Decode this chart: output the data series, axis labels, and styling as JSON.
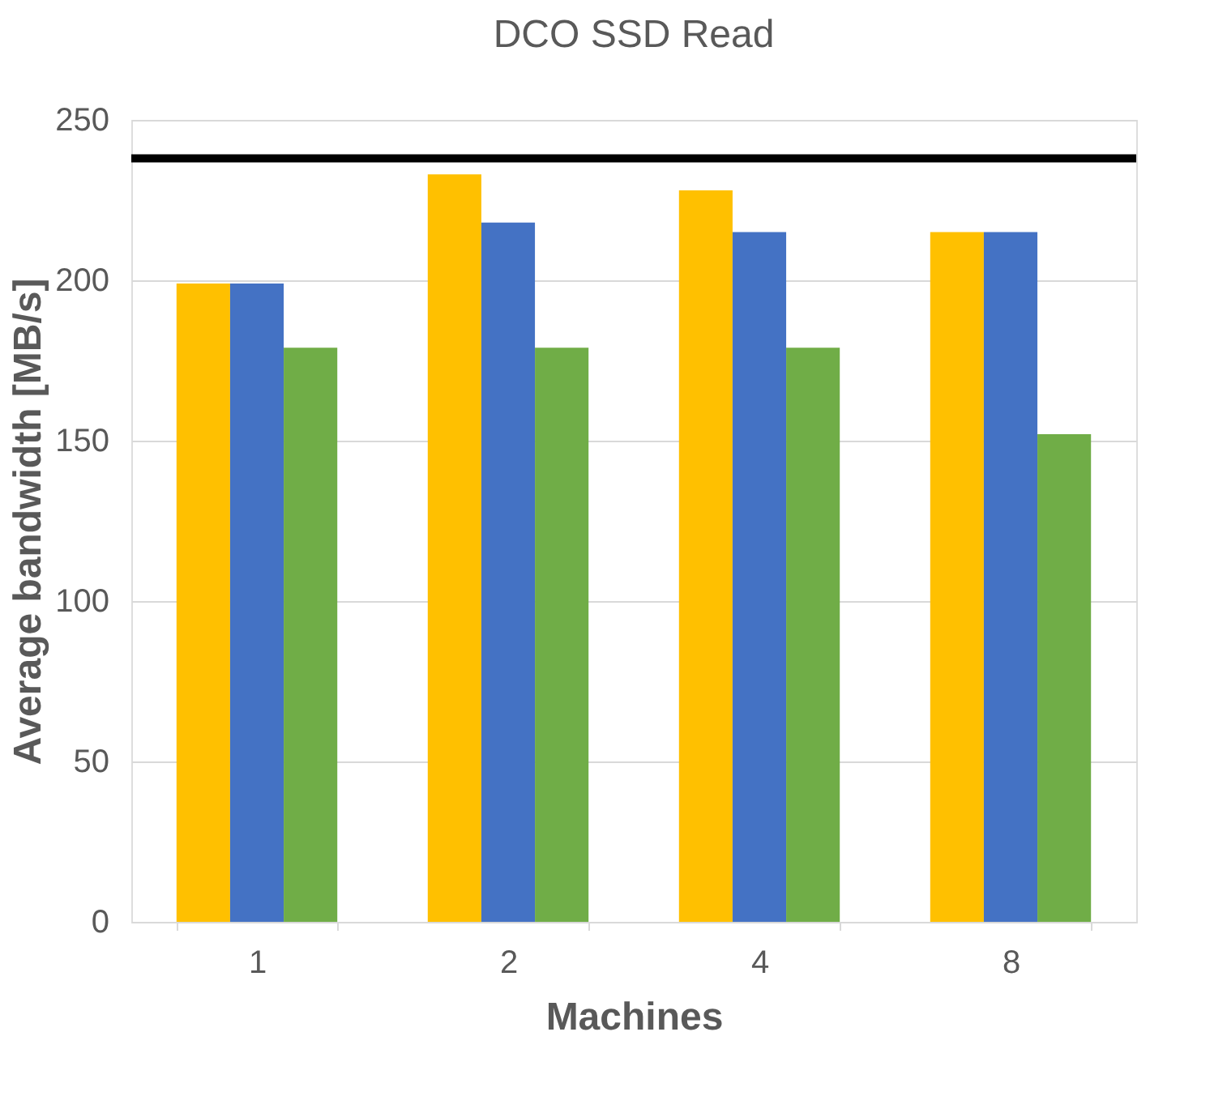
{
  "chart_data": {
    "type": "bar",
    "title": "DCO SSD Read",
    "xlabel": "Machines",
    "ylabel": "Average bandwidth [MB/s]",
    "categories": [
      "1",
      "2",
      "4",
      "8"
    ],
    "series": [
      {
        "color": "#ffc000",
        "values": [
          199,
          233,
          228,
          215
        ]
      },
      {
        "color": "#4472c4",
        "values": [
          199,
          218,
          215,
          215
        ]
      },
      {
        "color": "#70ad47",
        "values": [
          179,
          179,
          179,
          152
        ]
      }
    ],
    "ylim": [
      0,
      250
    ],
    "yticks": [
      0,
      50,
      100,
      150,
      200,
      250
    ],
    "grid": "y",
    "legend": false,
    "ref_lines": [
      {
        "axis": "y",
        "value": 238,
        "color": "#000000"
      }
    ]
  }
}
